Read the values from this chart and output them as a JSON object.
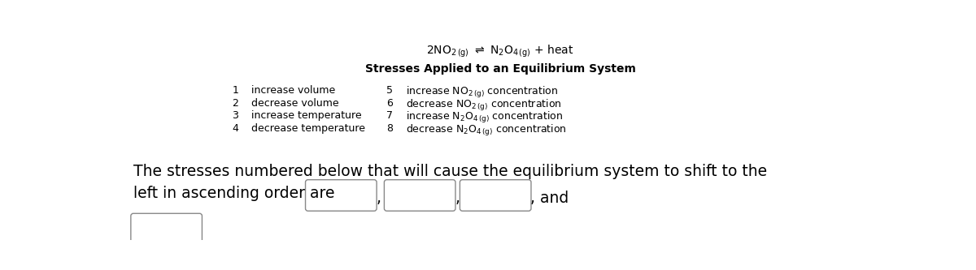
{
  "bg_color": "#ffffff",
  "subtitle": "Stresses Applied to an Equilibrium System",
  "items_left_nums": [
    "1",
    "2",
    "3",
    "4"
  ],
  "items_left_labels": [
    "increase volume",
    "decrease volume",
    "increase temperature",
    "decrease temperature"
  ],
  "items_right_nums": [
    "5",
    "6",
    "7",
    "8"
  ],
  "bottom_text_line1": "The stresses numbered below that will cause the equilibrium system to shift to the",
  "bottom_text_line2": "left in ascending order are",
  "font_size_eq": 10,
  "font_size_subtitle": 10,
  "font_size_items": 9,
  "font_size_bottom": 13.5
}
